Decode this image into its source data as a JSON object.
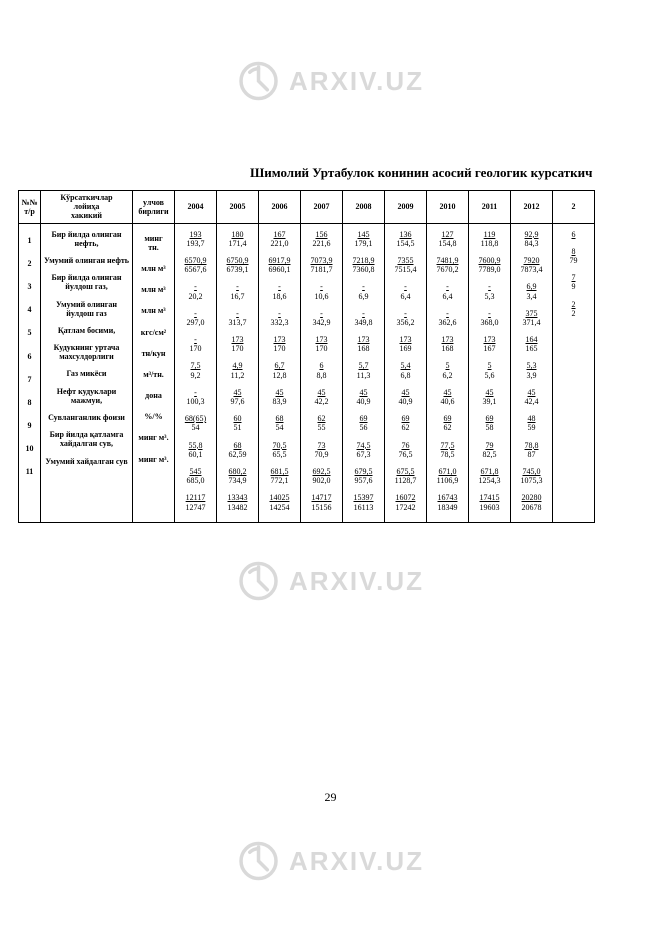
{
  "watermark_text": "ARXIV.UZ",
  "page_title": "Шимолий Уртабулок конинин асосий геологик курсаткич",
  "page_number": "29",
  "header": {
    "col_num": "№№\nт/р",
    "col_name": "Кўрсаткичлар\nлойиҳа\nхакикий",
    "col_unit": "улчов\nбирлиги",
    "years": [
      "2004",
      "2005",
      "2006",
      "2007",
      "2008",
      "2009",
      "2010",
      "2011",
      "2012",
      "2"
    ]
  },
  "rows": [
    {
      "n": "1",
      "name": "Бир йилда олинган нефть,",
      "unit": "минг\nтн.",
      "vals": [
        [
          "193",
          "193,7"
        ],
        [
          "180",
          "171,4"
        ],
        [
          "167",
          "221,0"
        ],
        [
          "156",
          "221,6"
        ],
        [
          "145",
          "179,1"
        ],
        [
          "136",
          "154,5"
        ],
        [
          "127",
          "154,8"
        ],
        [
          "119",
          "118,8"
        ],
        [
          "92,9",
          "84,3"
        ],
        [
          "6",
          ""
        ]
      ]
    },
    {
      "n": "2",
      "name": "Умумий олинган нефть",
      "unit": "млн м³",
      "vals": [
        [
          "6570,9",
          "6567,6"
        ],
        [
          "6750,9",
          "6739,1"
        ],
        [
          "6917,9",
          "6960,1"
        ],
        [
          "7073,9",
          "7181,7"
        ],
        [
          "7218,9",
          "7360,8"
        ],
        [
          "7355",
          "7515,4"
        ],
        [
          "7481,9",
          "7670,2"
        ],
        [
          "7600,9",
          "7789,0"
        ],
        [
          "7920",
          "7873,4"
        ],
        [
          "8",
          "79"
        ]
      ]
    },
    {
      "n": "3",
      "name": "Бир йилда олинган йулдош газ,",
      "unit": "млн м³",
      "vals": [
        [
          "-",
          "20,2"
        ],
        [
          "-",
          "16,7"
        ],
        [
          "-",
          "18,6"
        ],
        [
          "-",
          "10,6"
        ],
        [
          "-",
          "6,9"
        ],
        [
          "-",
          "6,4"
        ],
        [
          "-",
          "6,4"
        ],
        [
          "-",
          "5,3"
        ],
        [
          "6,9",
          "3,4"
        ],
        [
          "",
          ""
        ]
      ]
    },
    {
      "n": "4",
      "name": "Умумий олинган йулдош газ",
      "unit": "млн м³",
      "vals": [
        [
          "-",
          "297,0"
        ],
        [
          "-",
          "313,7"
        ],
        [
          "-",
          "332,3"
        ],
        [
          "-",
          "342,9"
        ],
        [
          "-",
          "349,8"
        ],
        [
          "-",
          "356,2"
        ],
        [
          "-",
          "362,6"
        ],
        [
          "-",
          "368,0"
        ],
        [
          "375",
          "371,4"
        ],
        [
          "",
          ""
        ]
      ]
    },
    {
      "n": "5",
      "name": "Қатлам босими,",
      "unit": "кгс/см²",
      "vals": [
        [
          "-",
          "170"
        ],
        [
          "173",
          "170"
        ],
        [
          "173",
          "170"
        ],
        [
          "173",
          "170"
        ],
        [
          "173",
          "168"
        ],
        [
          "173",
          "169"
        ],
        [
          "173",
          "168"
        ],
        [
          "173",
          "167"
        ],
        [
          "164",
          "165"
        ],
        [
          "",
          ""
        ]
      ]
    },
    {
      "n": "6",
      "name": "Кудукнинг уртача махсулдорлиги",
      "unit": "тн/кун",
      "vals": [
        [
          "7,5",
          "9,2"
        ],
        [
          "4,9",
          "11,2"
        ],
        [
          "6,7",
          "12,8"
        ],
        [
          "6",
          "8,8"
        ],
        [
          "5,7",
          "11,3"
        ],
        [
          "5,4",
          "6,8"
        ],
        [
          "5",
          "6,2"
        ],
        [
          "5",
          "5,6"
        ],
        [
          "5,3",
          "3,9"
        ],
        [
          "",
          ""
        ]
      ]
    },
    {
      "n": "7",
      "name": "Газ микёси",
      "unit": "м³/тн.",
      "vals": [
        [
          "-",
          "100,3"
        ],
        [
          "45",
          "97,6"
        ],
        [
          "45",
          "83,9"
        ],
        [
          "45",
          "42,2"
        ],
        [
          "45",
          "40,9"
        ],
        [
          "45",
          "40,9"
        ],
        [
          "45",
          "40,6"
        ],
        [
          "45",
          "39,1"
        ],
        [
          "45",
          "42,4"
        ],
        [
          "",
          ""
        ]
      ]
    },
    {
      "n": "8",
      "name": "Нефт кудуклари мажмуи,",
      "unit": "дона",
      "vals": [
        [
          "68(65)",
          "54"
        ],
        [
          "60",
          "51"
        ],
        [
          "68",
          "54"
        ],
        [
          "62",
          "55"
        ],
        [
          "69",
          "56"
        ],
        [
          "69",
          "62"
        ],
        [
          "69",
          "62"
        ],
        [
          "69",
          "58"
        ],
        [
          "48",
          "59"
        ],
        [
          "",
          ""
        ]
      ]
    },
    {
      "n": "9",
      "name": "Сувланганлик фоизи",
      "unit": "%/%",
      "vals": [
        [
          "55,8",
          "60,1"
        ],
        [
          "68",
          "62,59"
        ],
        [
          "70,5",
          "65,5"
        ],
        [
          "73",
          "70,9"
        ],
        [
          "74,5",
          "67,3"
        ],
        [
          "76",
          "76,5"
        ],
        [
          "77,5",
          "78,5"
        ],
        [
          "79",
          "82,5"
        ],
        [
          "78,8",
          "87"
        ],
        [
          "",
          ""
        ]
      ]
    },
    {
      "n": "10",
      "name": "Бир йилда қатламга хайдалган сув,",
      "unit": "минг м³.",
      "vals": [
        [
          "545",
          "685,0"
        ],
        [
          "680,2",
          "734,9"
        ],
        [
          "681,5",
          "772,1"
        ],
        [
          "692,5",
          "902,0"
        ],
        [
          "679,5",
          "957,6"
        ],
        [
          "675,5",
          "1128,7"
        ],
        [
          "671,0",
          "1106,9"
        ],
        [
          "671,8",
          "1254,3"
        ],
        [
          "745,0",
          "1075,3"
        ],
        [
          "7",
          "9"
        ]
      ]
    },
    {
      "n": "11",
      "name": "Умумий хайдалган сув",
      "unit": "минг м³.",
      "vals": [
        [
          "12117",
          "12747"
        ],
        [
          "13343",
          "13482"
        ],
        [
          "14025",
          "14254"
        ],
        [
          "14717",
          "15156"
        ],
        [
          "15397",
          "16113"
        ],
        [
          "16072",
          "17242"
        ],
        [
          "16743",
          "18349"
        ],
        [
          "17415",
          "19603"
        ],
        [
          "20280",
          "20678"
        ],
        [
          "2",
          "2"
        ]
      ]
    }
  ]
}
